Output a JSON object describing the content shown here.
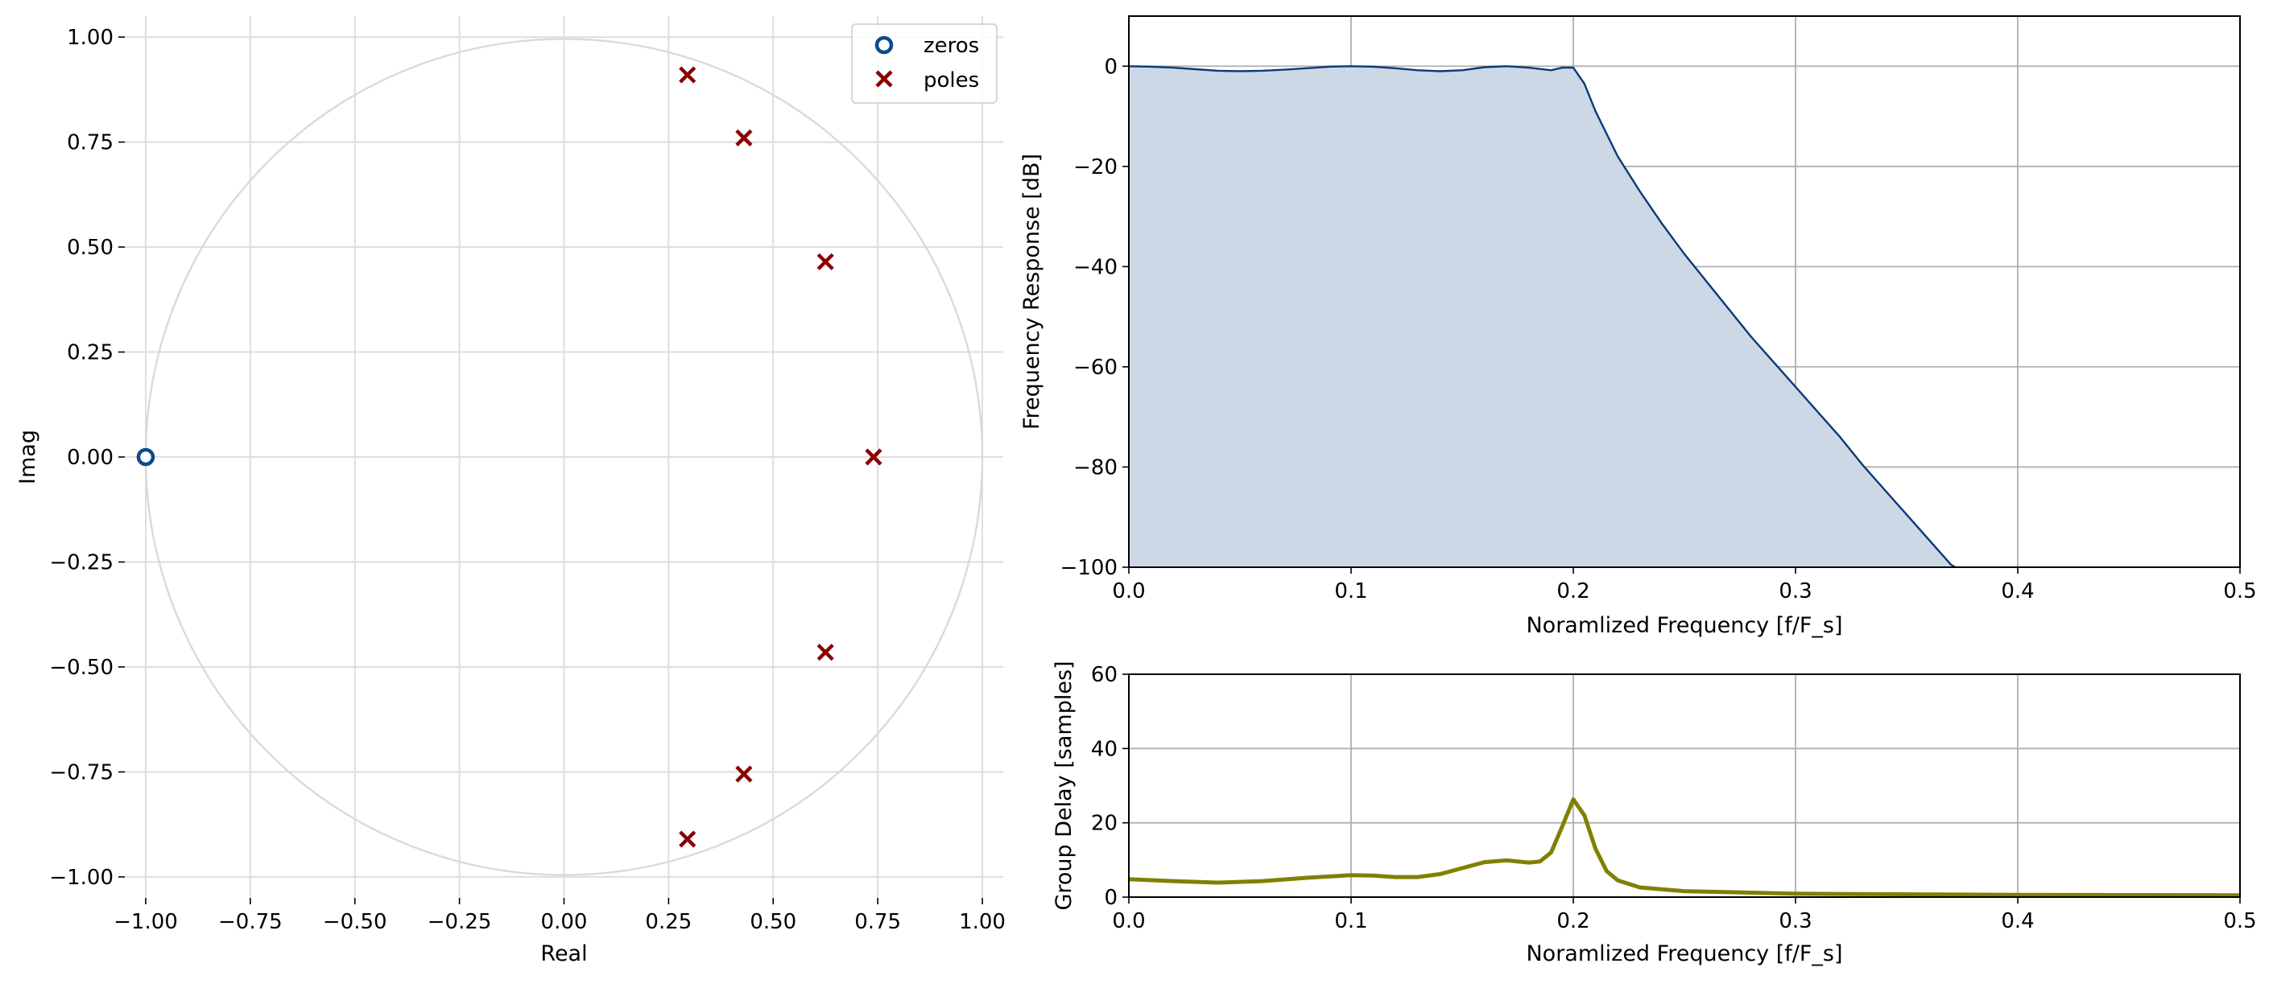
{
  "chart_data": [
    {
      "type": "scatter",
      "xlabel": "Real",
      "ylabel": "Imag",
      "xlim": [
        -1.05,
        1.05
      ],
      "ylim": [
        -1.05,
        1.05
      ],
      "xticks": [
        -1.0,
        -0.75,
        -0.5,
        -0.25,
        0.0,
        0.25,
        0.5,
        0.75,
        1.0
      ],
      "yticks": [
        -1.0,
        -0.75,
        -0.5,
        -0.25,
        0.0,
        0.25,
        0.5,
        0.75,
        1.0
      ],
      "xtick_labels": [
        "−1.00",
        "−0.75",
        "−0.50",
        "−0.25",
        "0.00",
        "0.25",
        "0.50",
        "0.75",
        "1.00"
      ],
      "ytick_labels": [
        "−1.00",
        "−0.75",
        "−0.50",
        "−0.25",
        "0.00",
        "0.25",
        "0.50",
        "0.75",
        "1.00"
      ],
      "grid": true,
      "unit_circle": true,
      "legend": {
        "placement": "top-right",
        "entries": [
          "zeros",
          "poles"
        ]
      },
      "series": [
        {
          "name": "zeros",
          "marker": "o",
          "color": "#0b4a8c",
          "points": [
            [
              -1.0,
              0.0
            ]
          ]
        },
        {
          "name": "poles",
          "marker": "x",
          "color": "#8b0000",
          "points": [
            [
              0.295,
              0.91
            ],
            [
              0.43,
              0.76
            ],
            [
              0.625,
              0.465
            ],
            [
              0.74,
              0.0
            ],
            [
              0.625,
              -0.465
            ],
            [
              0.43,
              -0.755
            ],
            [
              0.295,
              -0.91
            ]
          ]
        }
      ]
    },
    {
      "type": "area",
      "xlabel": "Noramlized Frequency [f/F_s]",
      "ylabel": "Frequency Response [dB]",
      "xlim": [
        0.0,
        0.5
      ],
      "ylim": [
        -100,
        10
      ],
      "xticks": [
        0.0,
        0.1,
        0.2,
        0.3,
        0.4,
        0.5
      ],
      "yticks": [
        -100,
        -80,
        -60,
        -40,
        -20,
        0
      ],
      "xtick_labels": [
        "0.0",
        "0.1",
        "0.2",
        "0.3",
        "0.4",
        "0.5"
      ],
      "ytick_labels": [
        "−100",
        "−80",
        "−60",
        "−40",
        "−20",
        "0"
      ],
      "grid": true,
      "line_color": "#083a7a",
      "fill_color": "#ccd8e5",
      "x": [
        0.0,
        0.01,
        0.02,
        0.03,
        0.04,
        0.05,
        0.06,
        0.07,
        0.08,
        0.09,
        0.1,
        0.11,
        0.12,
        0.13,
        0.14,
        0.15,
        0.16,
        0.17,
        0.18,
        0.19,
        0.195,
        0.2,
        0.205,
        0.21,
        0.22,
        0.23,
        0.24,
        0.25,
        0.26,
        0.27,
        0.28,
        0.29,
        0.3,
        0.31,
        0.32,
        0.33,
        0.34,
        0.35,
        0.36,
        0.37,
        0.372
      ],
      "y": [
        0.0,
        -0.1,
        -0.3,
        -0.6,
        -0.9,
        -1.0,
        -0.9,
        -0.7,
        -0.4,
        -0.1,
        0.0,
        -0.1,
        -0.4,
        -0.8,
        -1.0,
        -0.8,
        -0.2,
        0.0,
        -0.3,
        -0.8,
        -0.3,
        -0.3,
        -3.5,
        -9.0,
        -18.0,
        -25.0,
        -31.5,
        -37.5,
        -43.0,
        -48.5,
        -54.0,
        -59.0,
        -64.0,
        -69.0,
        -74.0,
        -79.5,
        -84.5,
        -89.5,
        -94.5,
        -99.5,
        -100.0
      ]
    },
    {
      "type": "line",
      "xlabel": "Noramlized Frequency [f/F_s]",
      "ylabel": "Group Delay [samples]",
      "xlim": [
        0.0,
        0.5
      ],
      "ylim": [
        0,
        60
      ],
      "xticks": [
        0.0,
        0.1,
        0.2,
        0.3,
        0.4,
        0.5
      ],
      "yticks": [
        0,
        20,
        40,
        60
      ],
      "xtick_labels": [
        "0.0",
        "0.1",
        "0.2",
        "0.3",
        "0.4",
        "0.5"
      ],
      "ytick_labels": [
        "0",
        "20",
        "40",
        "60"
      ],
      "grid": true,
      "line_color": "#808000",
      "x": [
        0.0,
        0.02,
        0.04,
        0.06,
        0.08,
        0.1,
        0.11,
        0.12,
        0.13,
        0.14,
        0.15,
        0.16,
        0.17,
        0.18,
        0.185,
        0.19,
        0.195,
        0.2,
        0.205,
        0.21,
        0.215,
        0.22,
        0.23,
        0.25,
        0.3,
        0.4,
        0.5
      ],
      "y": [
        4.8,
        4.3,
        3.9,
        4.3,
        5.2,
        5.9,
        5.8,
        5.4,
        5.4,
        6.2,
        7.8,
        9.4,
        9.9,
        9.3,
        9.6,
        12.0,
        19.0,
        26.3,
        22.0,
        13.0,
        7.0,
        4.5,
        2.6,
        1.6,
        0.9,
        0.6,
        0.5
      ]
    }
  ]
}
